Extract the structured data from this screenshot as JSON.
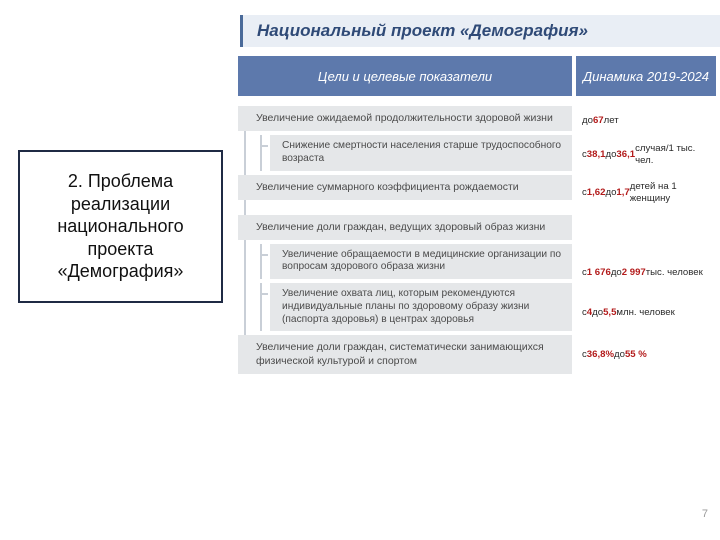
{
  "title": "Национальный проект «Демография»",
  "sidebar": "2. Проблема реализации национального проекта «Демография»",
  "headers": {
    "left": "Цели и целевые показатели",
    "right": "Динамика 2019-2024"
  },
  "blocks": [
    {
      "goal": "Увеличение ожидаемой продолжительности здоровой жизни",
      "dyn": "до <span class=\"emph\">67</span> лет",
      "subs": [
        {
          "goal": "Снижение смертности населения старше трудоспособного возраста",
          "dyn": "с <span class=\"emph\">38,1</span> до <span class=\"emph\">36,1</span> случая/1 тыс. чел."
        }
      ]
    },
    {
      "goal": "Увеличение суммарного коэффициента рождаемости",
      "dyn": "с <span class=\"emph\">1,62</span> до <span class=\"emph\">1,7</span> детей на 1 женщину",
      "subs": []
    },
    {
      "goal": "Увеличение доли граждан, ведущих здоровый образ жизни",
      "dyn": "",
      "subs": [
        {
          "goal": "Увеличение обращаемости в медицинские организации по вопросам здорового образа жизни",
          "dyn": "с <span class=\"emph\">1 676</span> до <span class=\"emph\">2 997</span> тыс. человек"
        },
        {
          "goal": "Увеличение охвата лиц, которым рекомендуются индивидуальные планы по здоровому образу жизни (паспорта здоровья) в центрах здоровья",
          "dyn": "с <span class=\"emph\">4</span> до <span class=\"emph\">5,5</span> млн. человек"
        }
      ]
    },
    {
      "goal": "Увеличение доли граждан, систематически занимающихся физической культурой и спортом",
      "dyn": "с <span class=\"emph\">36,8%</span> до <span class=\"emph\">55 %</span>",
      "subs": []
    }
  ],
  "page": "7"
}
